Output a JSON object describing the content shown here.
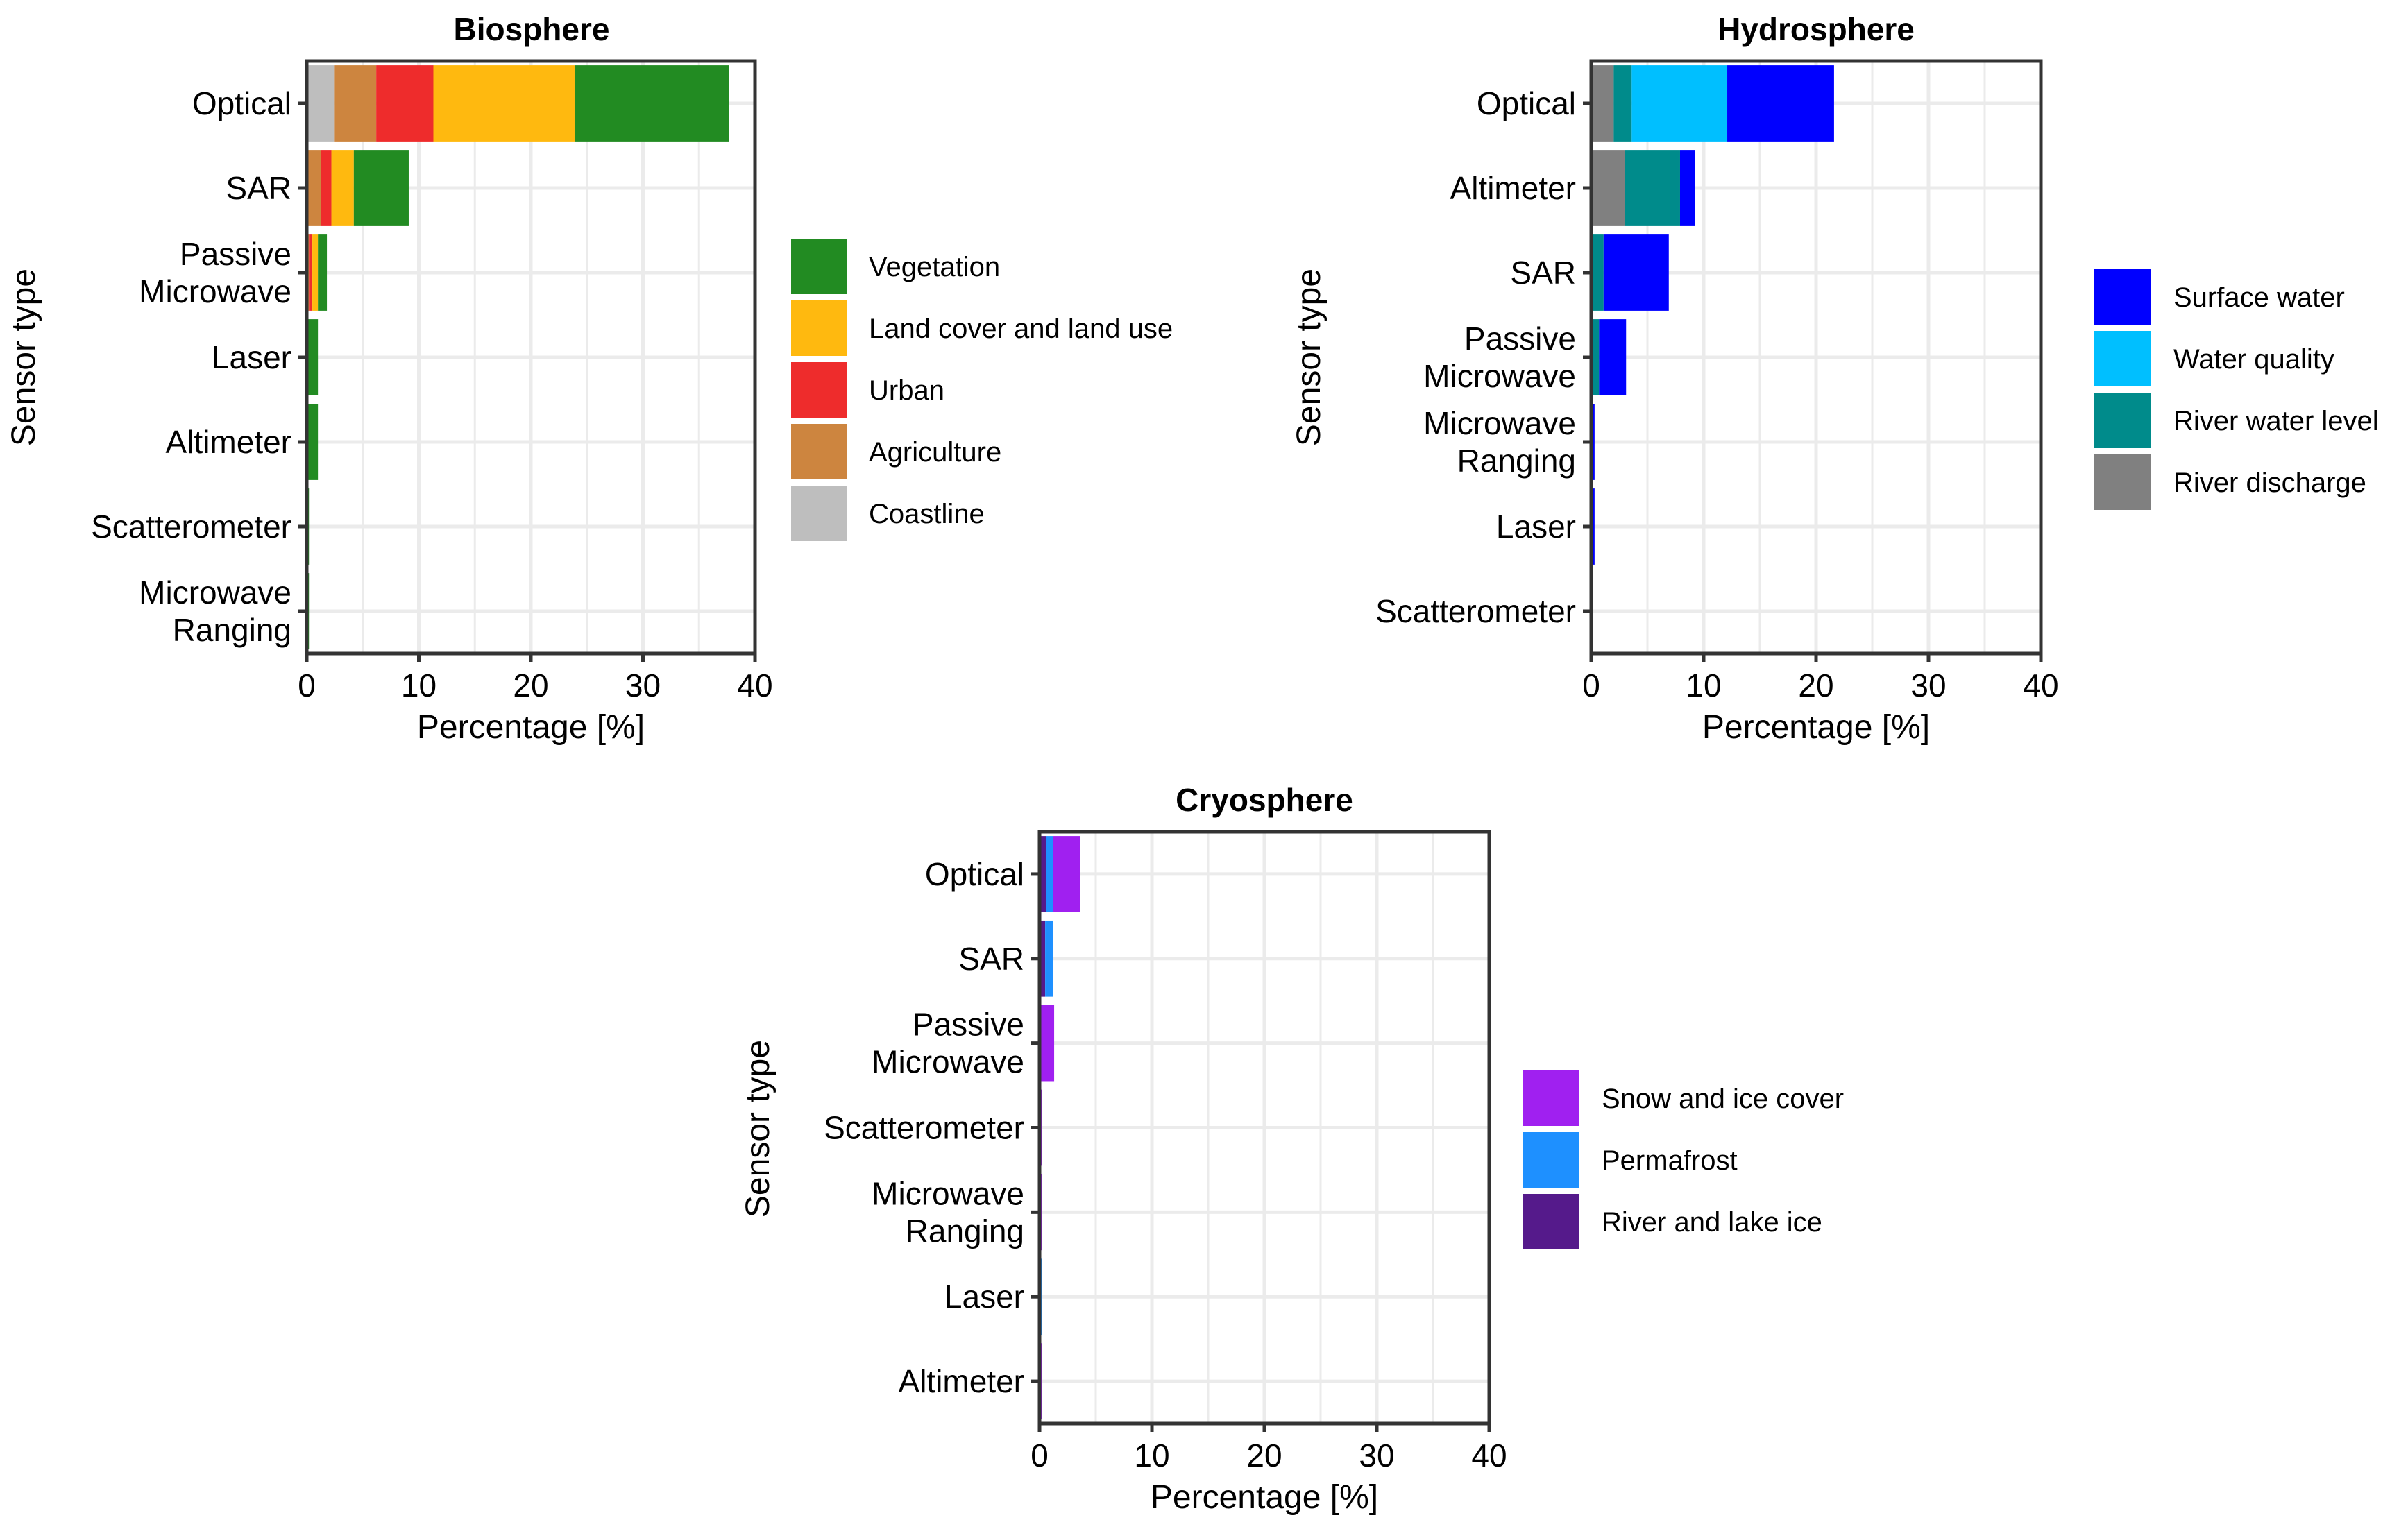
{
  "chart_data": [
    {
      "type": "bar",
      "orientation": "horizontal",
      "stacked": true,
      "title": "Biosphere",
      "xlabel": "Percentage [%]",
      "ylabel": "Sensor type",
      "xlim": [
        0,
        40
      ],
      "xticks": [
        "0",
        "10",
        "20",
        "30",
        "40"
      ],
      "grid": true,
      "legend_position": "right",
      "categories": [
        "Optical",
        "SAR",
        "Passive\nMicrowave",
        "Laser",
        "Altimeter",
        "Scatterometer",
        "Microwave\nRanging"
      ],
      "series": [
        {
          "name": "Coastline",
          "color": "#BEBEBE",
          "values": [
            2.5,
            0,
            0,
            0,
            0,
            0,
            0
          ]
        },
        {
          "name": "Agriculture",
          "color": "#CD853F",
          "values": [
            3.7,
            1.3,
            0.2,
            0,
            0,
            0,
            0
          ]
        },
        {
          "name": "Urban",
          "color": "#EE2C2C",
          "values": [
            5.1,
            0.9,
            0.3,
            0,
            0,
            0,
            0
          ]
        },
        {
          "name": "Land cover and land use",
          "color": "#FFB90F",
          "values": [
            12.6,
            2.0,
            0.5,
            0,
            0,
            0,
            0
          ]
        },
        {
          "name": "Vegetation",
          "color": "#228B22",
          "values": [
            13.8,
            4.9,
            0.8,
            1.0,
            1.0,
            0.2,
            0.2
          ]
        }
      ],
      "legend_order": [
        "Vegetation",
        "Land cover and land use",
        "Urban",
        "Agriculture",
        "Coastline"
      ]
    },
    {
      "type": "bar",
      "orientation": "horizontal",
      "stacked": true,
      "title": "Hydrosphere",
      "xlabel": "Percentage [%]",
      "ylabel": "Sensor type",
      "xlim": [
        0,
        40
      ],
      "xticks": [
        "0",
        "10",
        "20",
        "30",
        "40"
      ],
      "grid": true,
      "legend_position": "right",
      "categories": [
        "Optical",
        "Altimeter",
        "SAR",
        "Passive\nMicrowave",
        "Microwave\nRanging",
        "Laser",
        "Scatterometer"
      ],
      "series": [
        {
          "name": "River discharge",
          "color": "#808080",
          "values": [
            2.0,
            3.0,
            0,
            0,
            0,
            0,
            0
          ]
        },
        {
          "name": "River water level",
          "color": "#008B8B",
          "values": [
            1.6,
            4.9,
            1.1,
            0.7,
            0,
            0,
            0
          ]
        },
        {
          "name": "Water quality",
          "color": "#00BFFF",
          "values": [
            8.5,
            0,
            0,
            0,
            0,
            0,
            0
          ]
        },
        {
          "name": "Surface water",
          "color": "#0000FF",
          "values": [
            9.5,
            1.3,
            5.8,
            2.4,
            0.3,
            0.3,
            0.1
          ]
        }
      ],
      "legend_order": [
        "Surface water",
        "Water quality",
        "River water level",
        "River discharge"
      ]
    },
    {
      "type": "bar",
      "orientation": "horizontal",
      "stacked": true,
      "title": "Cryosphere",
      "xlabel": "Percentage [%]",
      "ylabel": "Sensor type",
      "xlim": [
        0,
        40
      ],
      "xticks": [
        "0",
        "10",
        "20",
        "30",
        "40"
      ],
      "grid": true,
      "legend_position": "right",
      "categories": [
        "Optical",
        "SAR",
        "Passive\nMicrowave",
        "Scatterometer",
        "Microwave\nRanging",
        "Laser",
        "Altimeter"
      ],
      "series": [
        {
          "name": "River and lake ice",
          "color": "#551A8B",
          "values": [
            0.6,
            0.5,
            0.1,
            0,
            0,
            0,
            0
          ]
        },
        {
          "name": "Permafrost",
          "color": "#1E90FF",
          "values": [
            0.6,
            0.7,
            0,
            0,
            0,
            0.2,
            0
          ]
        },
        {
          "name": "Snow and ice cover",
          "color": "#A020F0",
          "values": [
            2.4,
            0,
            1.2,
            0.2,
            0.2,
            0,
            0.2
          ]
        }
      ],
      "legend_order": [
        "Snow and ice cover",
        "Permafrost",
        "River and lake ice"
      ]
    }
  ]
}
